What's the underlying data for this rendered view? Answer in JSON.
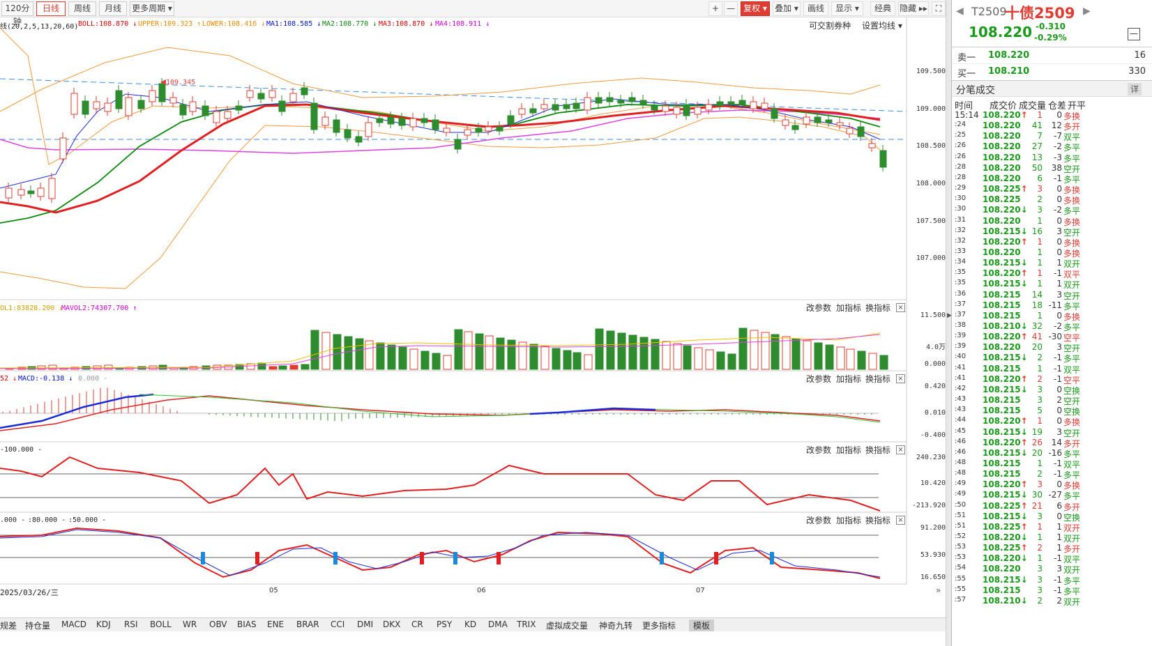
{
  "toolbar": {
    "periods": [
      "120分钟",
      "日线",
      "周线",
      "月线",
      "更多周期 ▾"
    ],
    "selected_period": "日线",
    "tools": [
      "+",
      "—",
      "复权 ▾",
      "叠加 ▾",
      "画线",
      "显示 ▾",
      "经典",
      "隐藏 ▸▸",
      "⛶"
    ]
  },
  "indicator_line": {
    "prefix": "线(20,2,5,13,20,60)",
    "boll": "BOLL:108.870 ↓",
    "upper": "UPPER:109.323 ↑",
    "lower": "LOWER:108.416 ↓",
    "ma1": "MA1:108.585 ↓",
    "ma2": "MA2:108.770 ↓",
    "ma3": "MA3:108.870 ↓",
    "ma4": "MA4:108.911 ↓",
    "right1": "可交割券种",
    "right2": "设置均线 ▾"
  },
  "main_axis": [
    "109.500",
    "109.000",
    "108.500",
    "108.000",
    "107.500",
    "107.000"
  ],
  "marker_label": "109.345",
  "vol_line": {
    "a": "OL1:83828.200 ↓",
    "b": "MAVOL2:74307.700 ↑"
  },
  "vol_axis": [
    "11.500",
    "4.0万",
    "0.000"
  ],
  "macd_line": {
    "a": "52 ↓",
    "b": "MACD:-0.138 ↓",
    "c": "0.000 -"
  },
  "macd_axis": [
    "0.420",
    "0.010",
    "-0.400"
  ],
  "cci_line": {
    "a": "-100.000 -"
  },
  "cci_axis": [
    "240.230",
    "10.420",
    "-213.920"
  ],
  "kdj_line": {
    "a": ".000 -",
    "b": ":80.000 -",
    "c": ":50.000 -"
  },
  "kdj_axis": [
    "91.200",
    "53.930",
    "16.650"
  ],
  "panel_ctrl": {
    "a": "改参数",
    "b": "加指标",
    "c": "换指标",
    "x": "×"
  },
  "date_label": "2025/03/26/三",
  "x_ticks": [
    "05",
    "06",
    "07"
  ],
  "bottom_tabs": [
    "规差",
    "持仓量",
    "MACD",
    "KDJ",
    "RSI",
    "BOLL",
    "WR",
    "OBV",
    "BIAS",
    "ENE",
    "BRAR",
    "CCI",
    "DMI",
    "DKX",
    "CR",
    "PSY",
    "KD",
    "DMA",
    "TRIX",
    "虚拟成交量",
    "神奇九转",
    "更多指标",
    "模板"
  ],
  "bottom_selected": "模板",
  "quote": {
    "code": "T2509",
    "name": "十债2509",
    "price": "108.220",
    "change": "-0.310",
    "pct": "-0.29%",
    "minus_btn": "—",
    "sell_label": "卖一",
    "sell_price": "108.220",
    "sell_vol": "16",
    "buy_label": "买一",
    "buy_price": "108.210",
    "buy_vol": "330",
    "ticks_title": "分笔成交",
    "detail_btn": "详",
    "headers": [
      "时间",
      "成交价",
      "成交量",
      "仓差",
      "开平"
    ],
    "colors": {
      "up": "#e03c31",
      "down": "#1a9a1a",
      "accent": "#e03c31"
    }
  },
  "ticks": [
    [
      "15:14",
      "108.220↑",
      "1",
      "0",
      "多换",
      "r"
    ],
    [
      ":24",
      "108.220",
      "41",
      "12",
      "多开",
      "r"
    ],
    [
      ":25",
      "108.220",
      "7",
      "-7",
      "双平",
      "g"
    ],
    [
      ":26",
      "108.220",
      "27",
      "-2",
      "多平",
      "g"
    ],
    [
      ":26",
      "108.220",
      "13",
      "-3",
      "多平",
      "g"
    ],
    [
      ":28",
      "108.220",
      "50",
      "38",
      "空开",
      "g"
    ],
    [
      ":28",
      "108.220",
      "6",
      "-1",
      "多平",
      "g"
    ],
    [
      ":29",
      "108.225↑",
      "3",
      "0",
      "多换",
      "r"
    ],
    [
      ":30",
      "108.225",
      "2",
      "0",
      "多换",
      "r"
    ],
    [
      ":30",
      "108.220↓",
      "3",
      "-2",
      "多平",
      "g"
    ],
    [
      ":31",
      "108.220",
      "1",
      "0",
      "多换",
      "r"
    ],
    [
      ":32",
      "108.215↓",
      "16",
      "3",
      "空开",
      "g"
    ],
    [
      ":32",
      "108.220↑",
      "1",
      "0",
      "多换",
      "r"
    ],
    [
      ":33",
      "108.220",
      "1",
      "0",
      "多换",
      "r"
    ],
    [
      ":34",
      "108.215↓",
      "1",
      "1",
      "双开",
      "g"
    ],
    [
      ":35",
      "108.220↑",
      "1",
      "-1",
      "双平",
      "r"
    ],
    [
      ":35",
      "108.215↓",
      "1",
      "1",
      "双开",
      "g"
    ],
    [
      ":36",
      "108.215",
      "14",
      "3",
      "空开",
      "g"
    ],
    [
      ":37",
      "108.215",
      "18",
      "-11",
      "多平",
      "g"
    ],
    [
      ":37",
      "108.215",
      "1",
      "0",
      "多换",
      "r"
    ],
    [
      ":38",
      "108.210↓",
      "32",
      "-2",
      "多平",
      "g"
    ],
    [
      ":39",
      "108.220↑",
      "41",
      "-30",
      "空平",
      "r"
    ],
    [
      ":39",
      "108.220",
      "20",
      "3",
      "空开",
      "g"
    ],
    [
      ":40",
      "108.215↓",
      "2",
      "-1",
      "多平",
      "g"
    ],
    [
      ":41",
      "108.215",
      "1",
      "-1",
      "双平",
      "g"
    ],
    [
      ":41",
      "108.220↑",
      "2",
      "-1",
      "空平",
      "r"
    ],
    [
      ":42",
      "108.215↓",
      "3",
      "0",
      "空换",
      "g"
    ],
    [
      ":43",
      "108.215",
      "3",
      "2",
      "空开",
      "g"
    ],
    [
      ":43",
      "108.215",
      "5",
      "0",
      "空换",
      "g"
    ],
    [
      ":44",
      "108.220↑",
      "1",
      "0",
      "多换",
      "r"
    ],
    [
      ":45",
      "108.215↓",
      "19",
      "3",
      "空开",
      "g"
    ],
    [
      ":46",
      "108.220↑",
      "26",
      "14",
      "多开",
      "r"
    ],
    [
      ":46",
      "108.215↓",
      "20",
      "-16",
      "多平",
      "g"
    ],
    [
      ":48",
      "108.215",
      "1",
      "-1",
      "双平",
      "g"
    ],
    [
      ":48",
      "108.215",
      "2",
      "-1",
      "多平",
      "g"
    ],
    [
      ":49",
      "108.220↑",
      "3",
      "0",
      "多换",
      "r"
    ],
    [
      ":49",
      "108.215↓",
      "30",
      "-27",
      "多平",
      "g"
    ],
    [
      ":50",
      "108.225↑",
      "21",
      "6",
      "多开",
      "r"
    ],
    [
      ":51",
      "108.215↓",
      "3",
      "0",
      "空换",
      "g"
    ],
    [
      ":51",
      "108.225↑",
      "1",
      "1",
      "双开",
      "r"
    ],
    [
      ":52",
      "108.220↓",
      "1",
      "1",
      "双开",
      "g"
    ],
    [
      ":53",
      "108.225↑",
      "2",
      "1",
      "多开",
      "r"
    ],
    [
      ":53",
      "108.220↓",
      "1",
      "-1",
      "双平",
      "g"
    ],
    [
      ":54",
      "108.220",
      "3",
      "3",
      "双开",
      "g"
    ],
    [
      ":55",
      "108.215↓",
      "3",
      "-1",
      "多平",
      "g"
    ],
    [
      ":55",
      "108.215",
      "3",
      "-1",
      "多平",
      "g"
    ],
    [
      ":57",
      "108.210↓",
      "2",
      "2",
      "双开",
      "g"
    ]
  ]
}
